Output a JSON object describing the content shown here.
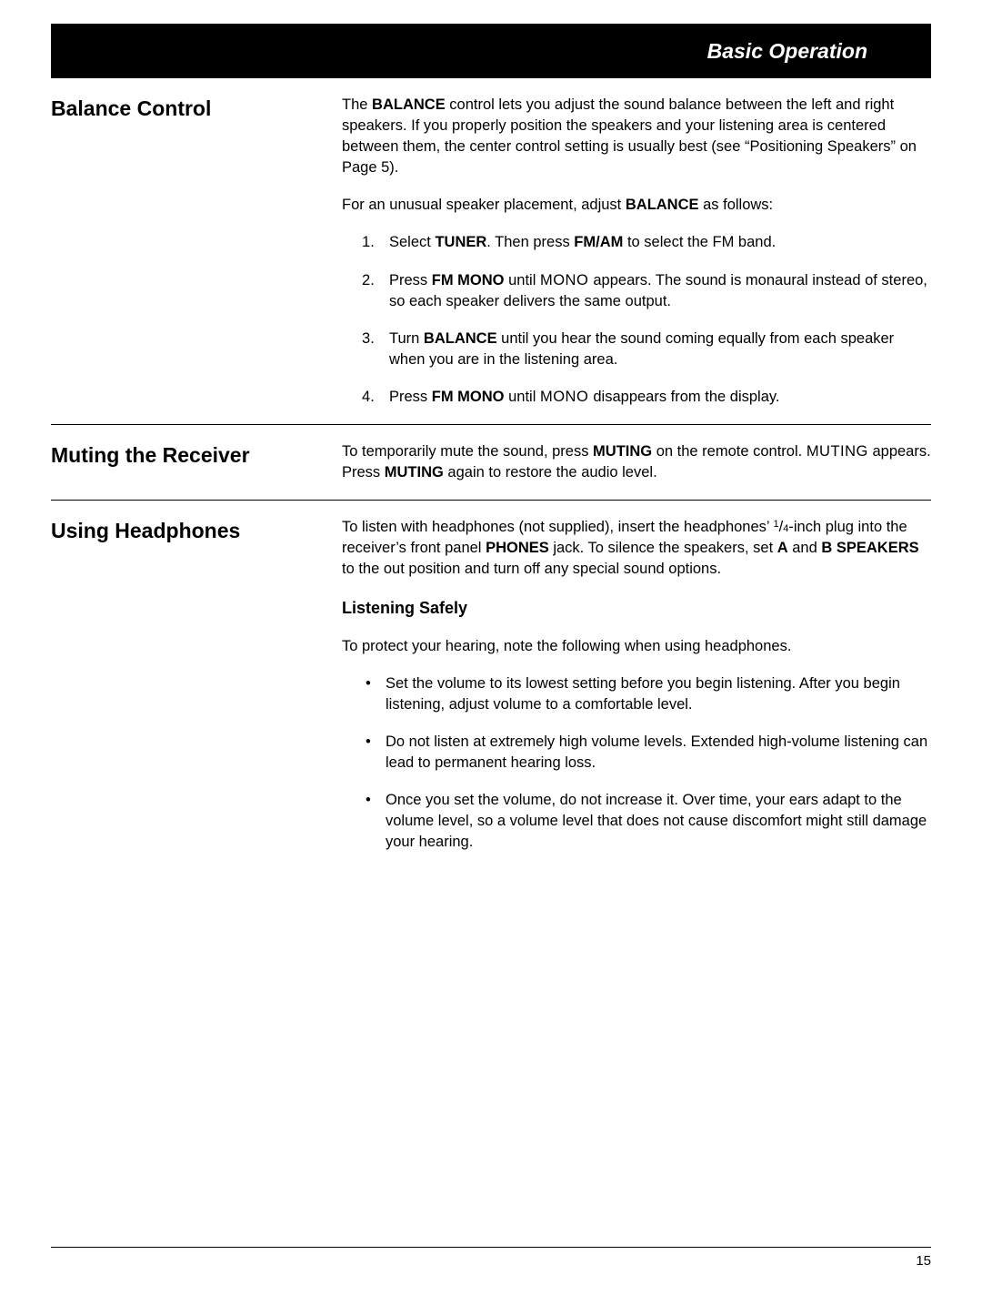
{
  "header": {
    "title": "Basic Operation"
  },
  "pageNumber": "15",
  "sections": {
    "balance": {
      "title": "Balance Control",
      "intro_pre": "The ",
      "intro_bold1": "BALANCE",
      "intro_mid": " control lets you adjust the sound balance between the left and right speakers. If you properly position the speakers and your listening area is centered between them, the center control setting is usually best (see “Positioning Speakers” on Page 5).",
      "para2_pre": "For an unusual speaker placement, adjust ",
      "para2_bold": "BALANCE",
      "para2_post": " as follows:",
      "steps": {
        "s1_pre": "Select ",
        "s1_b1": "TUNER",
        "s1_mid": ". Then press ",
        "s1_b2": "FM/AM",
        "s1_post": " to select the FM band.",
        "s2_pre": "Press ",
        "s2_b1": "FM MONO",
        "s2_mid": " until ",
        "s2_disp": "MONO ",
        "s2_post": "appears. The sound is monaural instead of stereo, so each speaker delivers the same output.",
        "s3_pre": "Turn ",
        "s3_b1": "BALANCE",
        "s3_post": " until you hear the sound coming equally from each speaker when you are in the listening area.",
        "s4_pre": "Press ",
        "s4_b1": "FM MONO",
        "s4_mid": " until ",
        "s4_disp": "MONO ",
        "s4_post": "disappears from the display."
      }
    },
    "muting": {
      "title": "Muting the Receiver",
      "p_pre": "To temporarily mute the sound, press ",
      "p_b1": "MUTING",
      "p_mid1": " on the remote control. ",
      "p_disp": "MUTING",
      "p_mid2": " appears. Press ",
      "p_b2": "MUTING",
      "p_post": " again to restore the audio level."
    },
    "headphones": {
      "title": "Using Headphones",
      "p_pre": "To listen with headphones (not supplied), insert the headphones’ ",
      "frac_n": "1",
      "frac_d": "4",
      "p_mid1": "-inch plug into the receiver’s front panel ",
      "p_b1": "PHONES",
      "p_mid2": " jack. To silence the speakers, set ",
      "p_b2": "A",
      "p_mid3": " and ",
      "p_b3": "B SPEAKERS",
      "p_post": " to the out position and turn off any special sound options.",
      "sub_heading": "Listening Safely",
      "sub_intro": "To protect your hearing, note the following when using headphones.",
      "bullets": {
        "b1": "Set the volume to its lowest setting before you begin listening. After you begin listening, adjust volume to a comfortable level.",
        "b2": "Do not listen at extremely high volume levels. Extended high-volume listening can lead to permanent hearing loss.",
        "b3": "Once you set the volume, do not increase it. Over time, your ears adapt to the volume level, so a volume level that does not cause discomfort might still damage your hearing."
      }
    }
  }
}
